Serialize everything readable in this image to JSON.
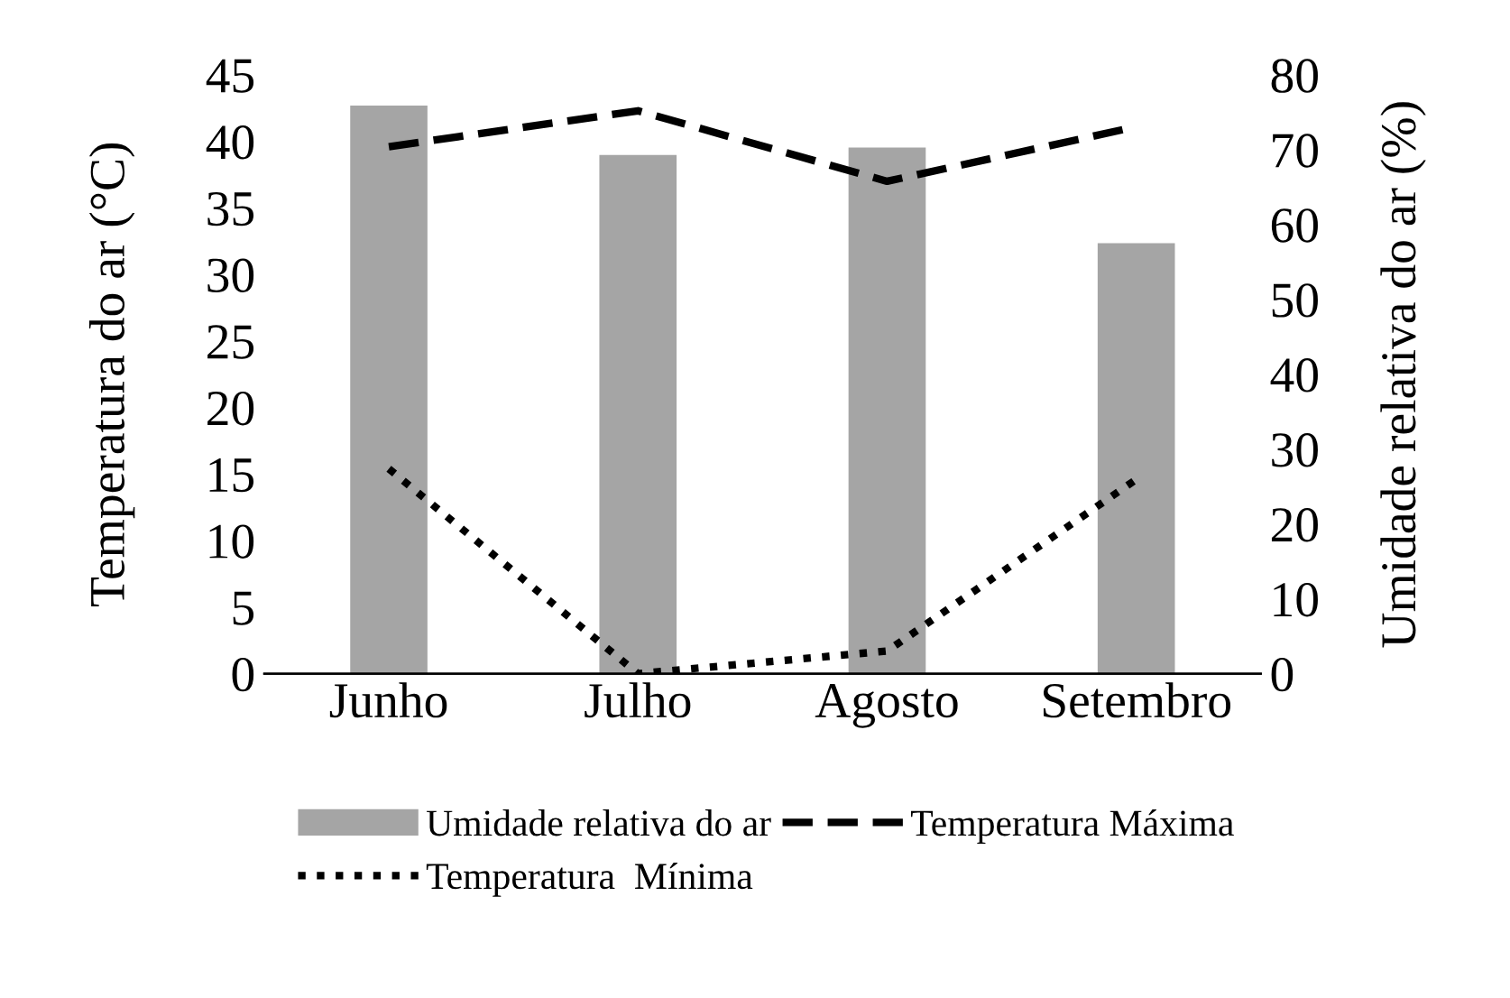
{
  "chart_data": {
    "type": "bar",
    "categories": [
      "Junho",
      "Julho",
      "Agosto",
      "Setembro"
    ],
    "ylabel": "Temperatura do ar (°C)",
    "y2label": "Umidade relativa do ar (%)",
    "ylim": [
      0,
      45
    ],
    "yticks": [
      0,
      5,
      10,
      15,
      20,
      25,
      30,
      35,
      40,
      45
    ],
    "y2lim": [
      0,
      80
    ],
    "y2ticks": [
      0,
      10,
      20,
      30,
      40,
      50,
      60,
      70,
      80
    ],
    "grid": false,
    "legend": "bottom",
    "series": [
      {
        "name": "Umidade relativa do ar",
        "axis": "y2",
        "color": "#a5a5a5",
        "values": [
          75.9,
          69.3,
          70.3,
          57.5
        ]
      },
      {
        "name": "Temperatura Máxima",
        "type": "line",
        "axis": "y",
        "color": "#000000",
        "line_style": "dashed",
        "values": [
          39.6,
          42.3,
          37.0,
          41.1
        ]
      },
      {
        "name": "Temperatura  Mínima",
        "type": "line",
        "axis": "y",
        "color": "#000000",
        "line_style": "dotted",
        "values": [
          15.4,
          0.0,
          1.7,
          14.6
        ]
      }
    ]
  }
}
